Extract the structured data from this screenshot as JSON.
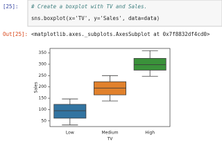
{
  "cell": {
    "prompt": "[25]:",
    "comment": "# Create a boxplot with TV and Sales.",
    "code": "sns.boxplot(x='TV', y='Sales', data=data)"
  },
  "output": {
    "prompt": "Out[25]:",
    "text": "<matplotlib.axes._subplots.AxesSubplot at 0x7f8832df4cd0>"
  },
  "chart_data": {
    "type": "box",
    "x_label": "TV",
    "y_label": "Sales",
    "categories": [
      "Low",
      "Medium",
      "High"
    ],
    "colors": [
      "#3274a1",
      "#e1812c",
      "#3a923a"
    ],
    "boxes": [
      {
        "whisker_low": 32,
        "q1": 62,
        "median": 95,
        "q3": 123,
        "whisker_high": 147
      },
      {
        "whisker_low": 138,
        "q1": 165,
        "median": 195,
        "q3": 223,
        "whisker_high": 250
      },
      {
        "whisker_low": 247,
        "q1": 274,
        "median": 298,
        "q3": 326,
        "whisker_high": 360
      }
    ],
    "ylim": [
      25,
      370
    ],
    "yticks": [
      50,
      100,
      150,
      200,
      250,
      300,
      350
    ]
  }
}
